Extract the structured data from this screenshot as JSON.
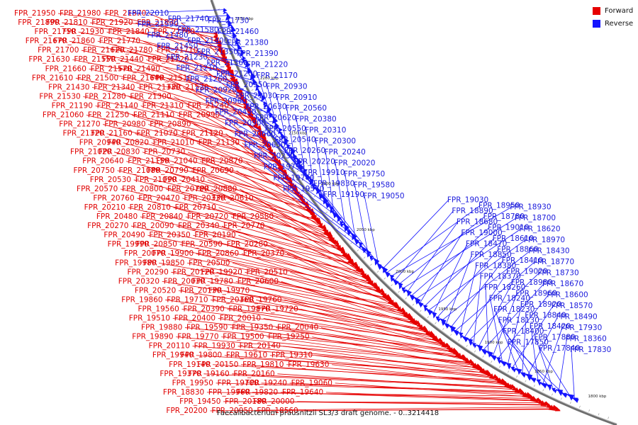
{
  "title": "Faecalibacterium prausnitzii SL3/3 draft genome. - 0..3214418",
  "legend": {
    "forward_label": "Forward",
    "reverse_label": "Reverse",
    "forward_color": "#e60000",
    "reverse_color": "#1414ff"
  },
  "scale_ticks": [
    "2250 kbp",
    "2200 kbp",
    "2150 kbp",
    "2100 kbp",
    "2050 kbp",
    "2000 kbp",
    "1950 kbp",
    "1900 kbp",
    "1850 kbp",
    "1800 kbp"
  ],
  "forward_genes": [
    "FPR_21950",
    "FPR_21980",
    "FPR_21870",
    "FPR_21890",
    "FPR_21810",
    "FPR_21920",
    "FPR_21830",
    "FPR_21750",
    "FPR_21930",
    "FPR_21840",
    "FPR_21760",
    "FPR_21670",
    "FPR_21860",
    "FPR_21770",
    "FPR_21700",
    "FPR_21620",
    "FPR_21780",
    "FPR_21710",
    "FPR_21630",
    "FPR_21550",
    "FPR_21440",
    "FPR_21720",
    "FPR_21660",
    "FPR_21570",
    "FPR_21490",
    "FPR_21610",
    "FPR_21500",
    "FPR_21640",
    "FPR_21510",
    "FPR_21430",
    "FPR_21340",
    "FPR_21330",
    "FPR_21520",
    "FPR_21530",
    "FPR_21280",
    "FPR_21300",
    "FPR_21190",
    "FPR_21140",
    "FPR_21310",
    "FPR_21240",
    "FPR_21060",
    "FPR_21250",
    "FPR_21110",
    "FPR_20990",
    "FPR_21270",
    "FPR_20980",
    "FPR_20890",
    "FPR_21320",
    "FPR_21160",
    "FPR_21070",
    "FPR_21120",
    "FPR_20940",
    "FPR_20820",
    "FPR_21010",
    "FPR_21130",
    "FPR_21020",
    "FPR_20830",
    "FPR_20730",
    "FPR_20640",
    "FPR_21150",
    "FPR_21040",
    "FPR_20870",
    "FPR_20750",
    "FPR_21080",
    "FPR_20790",
    "FPR_20690",
    "FPR_20530",
    "FPR_21090",
    "FPR_20410",
    "FPR_20570",
    "FPR_20800",
    "FPR_20700",
    "FPR_20880",
    "FPR_20760",
    "FPR_20470",
    "FPR_20330",
    "FPR_20610",
    "FPR_20210",
    "FPR_20810",
    "FPR_20710",
    "FPR_20480",
    "FPR_20840",
    "FPR_20720",
    "FPR_20580",
    "FPR_20270",
    "FPR_20090",
    "FPR_20340",
    "FPR_20770",
    "FPR_20490",
    "FPR_20350",
    "FPR_20190",
    "FPR_19990",
    "FPR_20850",
    "FPR_20590",
    "FPR_20280",
    "FPR_20070",
    "FPR_19900",
    "FPR_20860",
    "FPR_20370",
    "FPR_19980",
    "FPR_19850",
    "FPR_20500",
    "FPR_20290",
    "FPR_20120",
    "FPR_19920",
    "FPR_20510",
    "FPR_20320",
    "FPR_20030",
    "FPR_19780",
    "FPR_20600",
    "FPR_20520",
    "FPR_20130",
    "FPR_19970",
    "FPR_19860",
    "FPR_19710",
    "FPR_20360",
    "FPR_19760",
    "FPR_19560",
    "FPR_20390",
    "FPR_19870",
    "FPR_19720",
    "FPR_19510",
    "FPR_20400",
    "FPR_20010",
    "FPR_19880",
    "FPR_19590",
    "FPR_19350",
    "FPR_20040",
    "FPR_19890",
    "FPR_19770",
    "FPR_19500",
    "FPR_19250",
    "FPR_20110",
    "FPR_19930",
    "FPR_20140",
    "FPR_19940",
    "FPR_19800",
    "FPR_19610",
    "FPR_19310",
    "FPR_19140",
    "FPR_20150",
    "FPR_19810",
    "FPR_19630",
    "FPR_19370",
    "FPR_19160",
    "FPR_20160",
    "FPR_19950",
    "FPR_19700",
    "FPR_19240",
    "FPR_19060",
    "FPR_18830",
    "FPR_19960",
    "FPR_19820",
    "FPR_19640",
    "FPR_19450",
    "FPR_20180",
    "FPR_20000",
    "FPR_20200",
    "FPR_20050",
    "FPR_18560"
  ],
  "reverse_genes": [
    "FPR_22010",
    "FPR_21740",
    "FPR_21730",
    "FPR_21590",
    "FPR_21580",
    "FPR_21460",
    "FPR_21480",
    "FPR_21400",
    "FPR_21380",
    "FPR_21450",
    "FPR_21350",
    "FPR_21390",
    "FPR_21230",
    "FPR_21360",
    "FPR_21220",
    "FPR_21210",
    "FPR_21200",
    "FPR_21170",
    "FPR_21260",
    "FPR_20950",
    "FPR_20930",
    "FPR_20920",
    "FPR_21030",
    "FPR_20910",
    "FPR_20960",
    "FPR_20630",
    "FPR_20560",
    "FPR_20450",
    "FPR_20620",
    "FPR_20380",
    "FPR_20900",
    "FPR_20550",
    "FPR_20310",
    "FPR_20660",
    "FPR_20540",
    "FPR_20300",
    "FPR_20650",
    "FPR_20260",
    "FPR_20240",
    "FPR_20230",
    "FPR_20220",
    "FPR_20020",
    "FPR_19790",
    "FPR_19910",
    "FPR_19750",
    "FPR_19740",
    "FPR_19830",
    "FPR_19580",
    "FPR_19570",
    "FPR_19190",
    "FPR_19050",
    "FPR_19030",
    "FPR_18950",
    "FPR_18930",
    "FPR_18890",
    "FPR_18780",
    "FPR_18700",
    "FPR_18680",
    "FPR_19010",
    "FPR_18620",
    "FPR_19000",
    "FPR_18610",
    "FPR_18970",
    "FPR_18470",
    "FPR_18860",
    "FPR_18430",
    "FPR_18850",
    "FPR_18410",
    "FPR_18770",
    "FPR_18380",
    "FPR_19020",
    "FPR_18730",
    "FPR_18370",
    "FPR_18980",
    "FPR_18670",
    "FPR_18260",
    "FPR_18960",
    "FPR_18600",
    "FPR_18240",
    "FPR_18920",
    "FPR_18570",
    "FPR_18230",
    "FPR_18840",
    "FPR_18490",
    "FPR_18130",
    "FPR_18420",
    "FPR_17930",
    "FPR_18400",
    "FPR_17880",
    "FPR_18360",
    "FPR_17850",
    "FPR_17840",
    "FPR_17830"
  ]
}
